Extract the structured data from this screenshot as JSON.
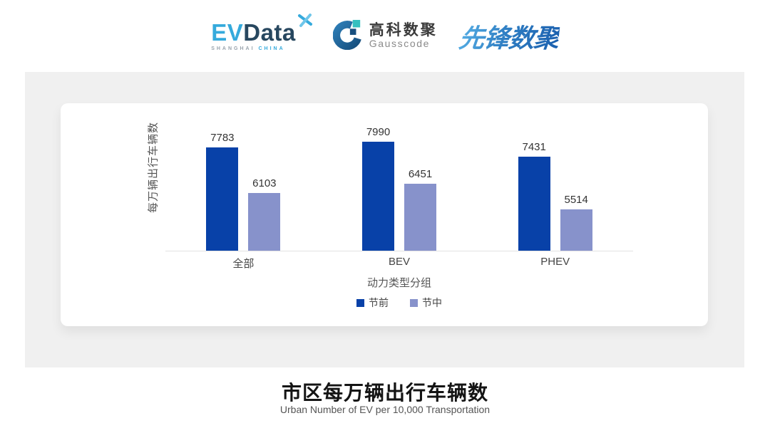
{
  "header": {
    "evdata": {
      "ev": "EV",
      "data": "Data",
      "sub_left": "SHANGHAI",
      "sub_right": "CHINA"
    },
    "gausscode": {
      "cn": "高科数聚",
      "en": "Gausscode"
    },
    "xianfeng": {
      "text": "先锋数聚"
    }
  },
  "chart_data": {
    "type": "bar",
    "categories": [
      "全部",
      "BEV",
      "PHEV"
    ],
    "series": [
      {
        "name": "节前",
        "color": "#0841a8",
        "values": [
          7783,
          7990,
          7431
        ]
      },
      {
        "name": "节中",
        "color": "#8792cb",
        "values": [
          6103,
          6451,
          5514
        ]
      }
    ],
    "xlabel": "动力类型分组",
    "ylabel": "每万辆出行车辆数",
    "ylim": [
      4000,
      9000
    ],
    "grid": false,
    "legend_position": "bottom",
    "value_labels": true
  },
  "footer": {
    "title": "市区每万辆出行车辆数",
    "subtitle": "Urban Number of EV per 10,000 Transportation"
  },
  "colors": {
    "series_pre": "#0841a8",
    "series_mid": "#8792cb",
    "panel_bg": "#f0f0f0",
    "card_bg": "#ffffff",
    "evdata_blue": "#35aadc",
    "evdata_navy": "#27475f",
    "gauss_blue": "#1f6496",
    "gauss_teal": "#35c0bf",
    "xianfeng_blue": "#2f7fc4"
  }
}
